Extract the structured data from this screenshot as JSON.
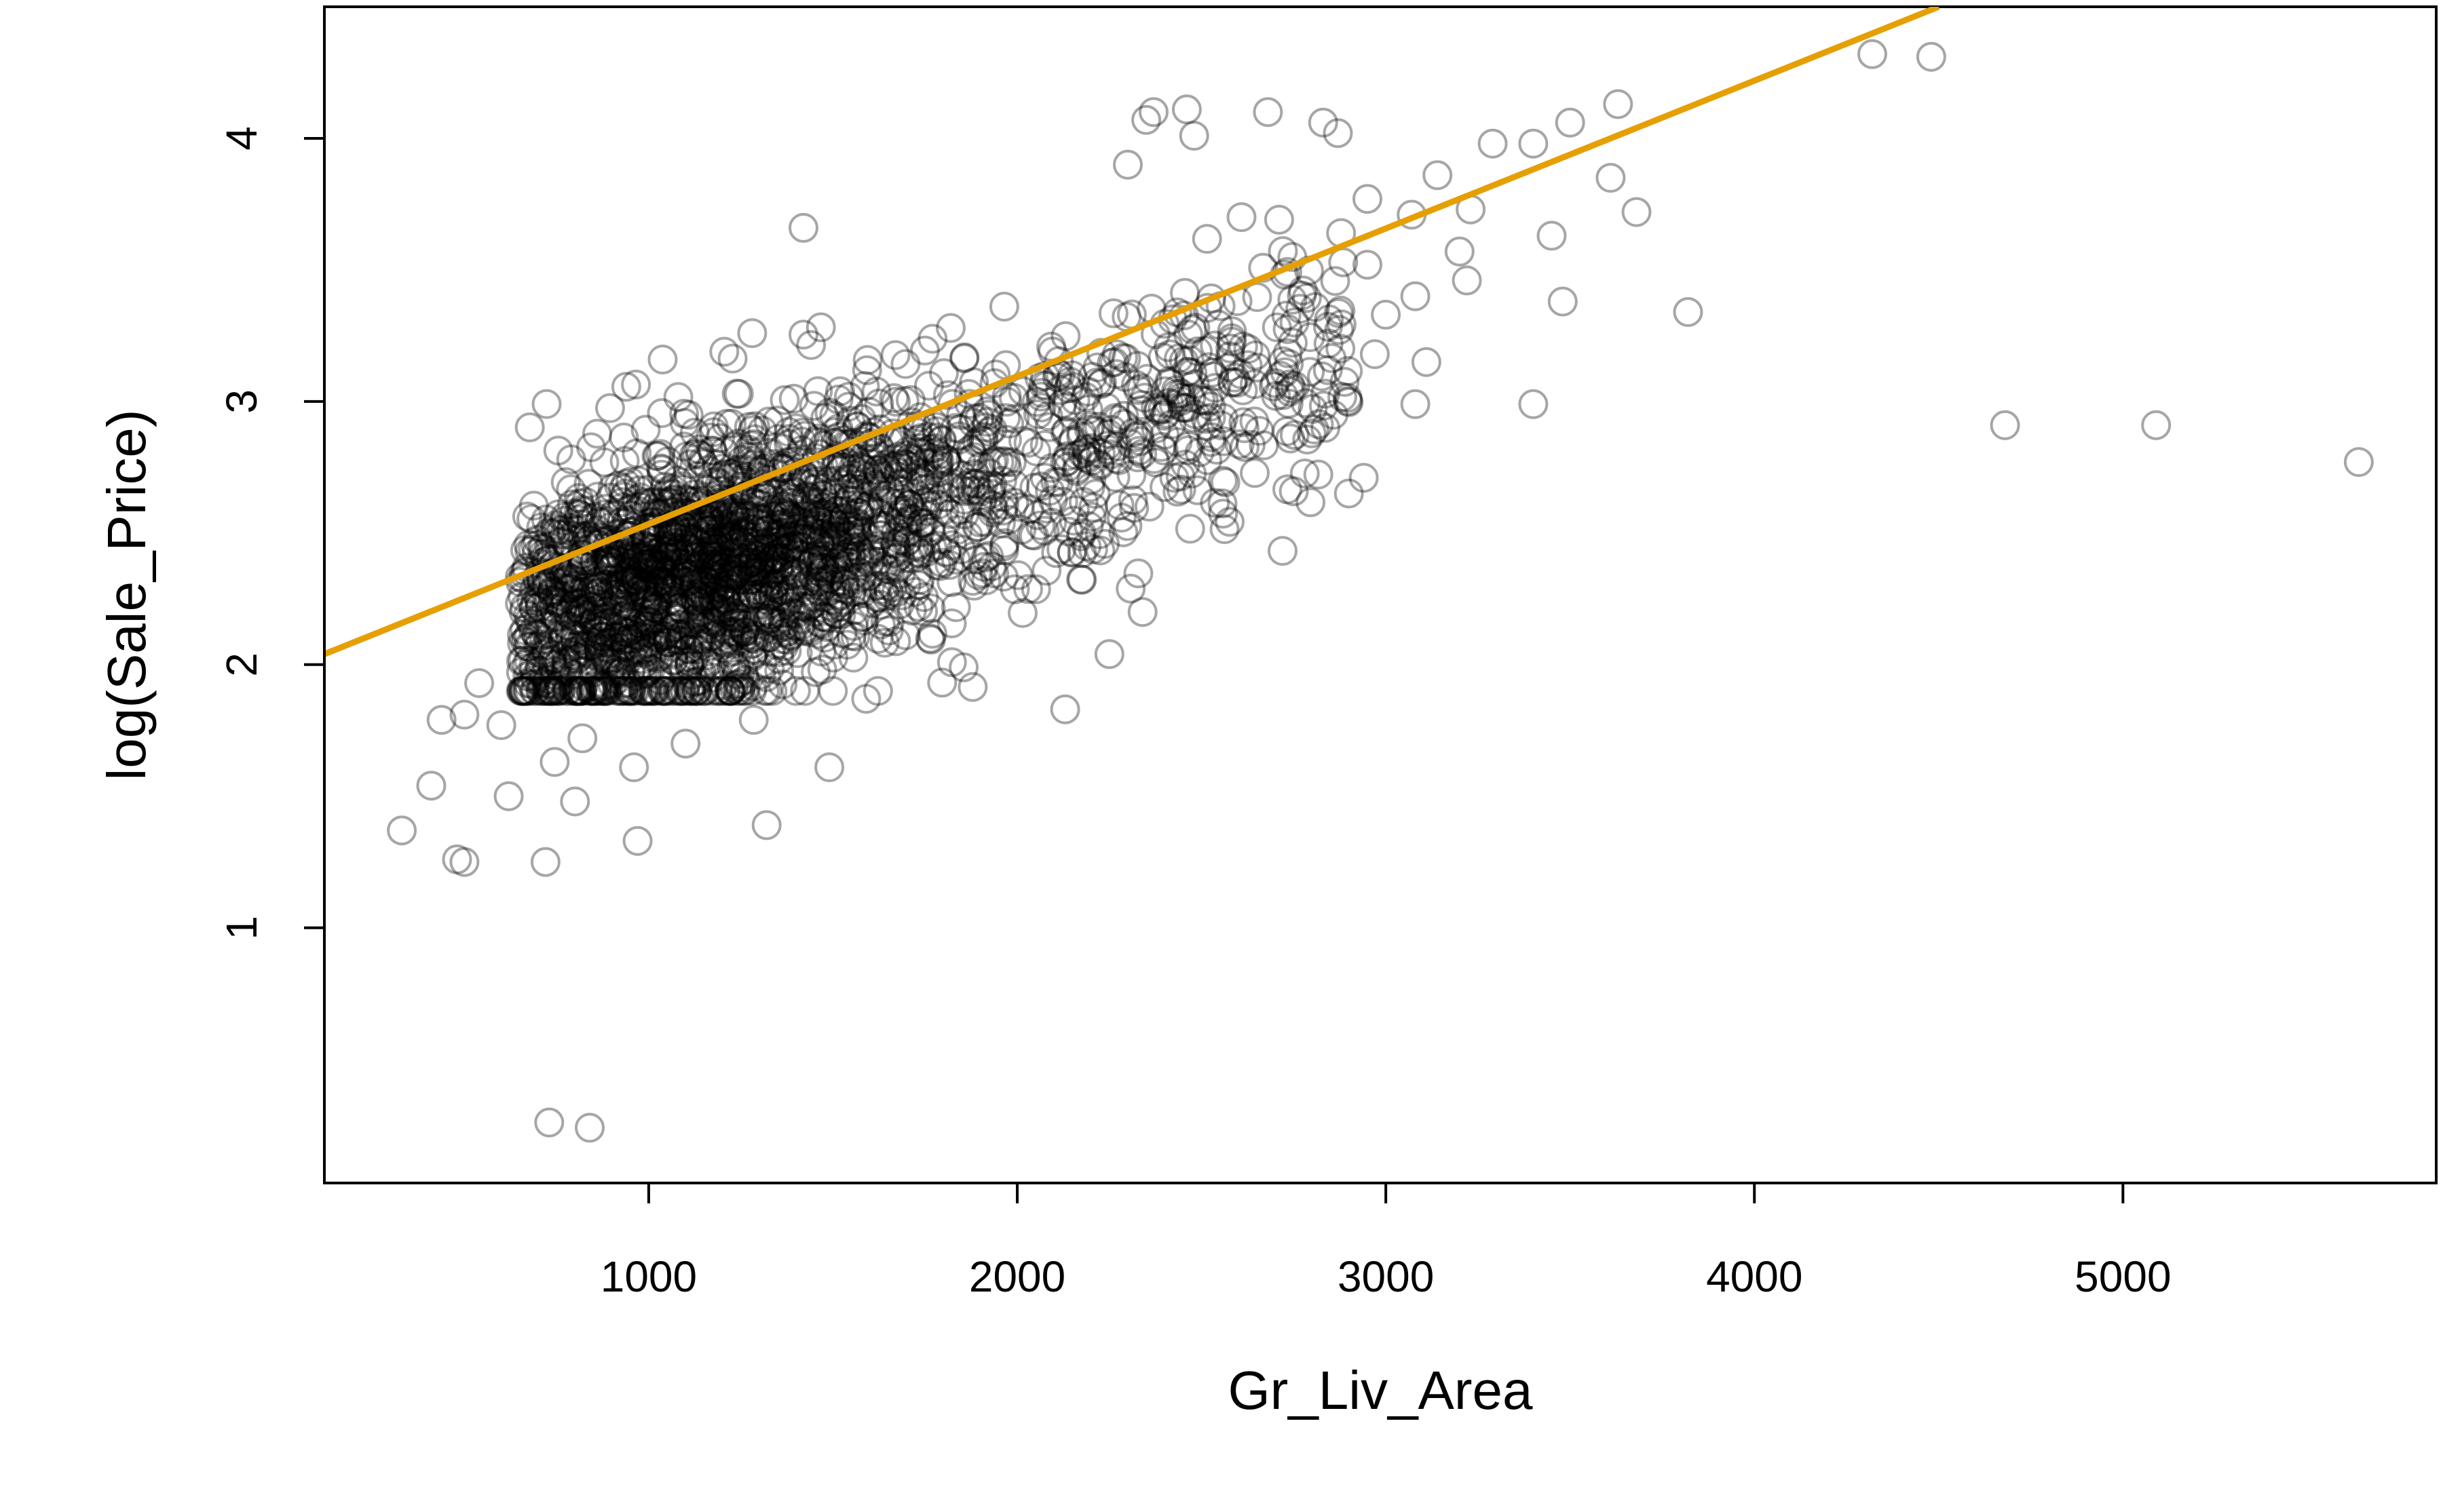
{
  "chart_data": {
    "type": "scatter",
    "title": "",
    "xlabel": "Gr_Liv_Area",
    "ylabel": "log(Sale_Price)",
    "xlim": [
      120,
      5850
    ],
    "ylim": [
      0.03,
      4.5
    ],
    "x_ticks": [
      1000,
      2000,
      3000,
      4000,
      5000
    ],
    "y_ticks": [
      1,
      2,
      3,
      4
    ],
    "grid": false,
    "legend": "none",
    "marker": "open-circle",
    "point_color": "#000000",
    "point_opacity": 0.35,
    "line_color": "#E69F00",
    "regression_line": {
      "x": [
        120,
        4500
      ],
      "y": [
        2.04,
        4.5
      ]
    },
    "outlier_points": [
      [
        330,
        1.37
      ],
      [
        410,
        1.54
      ],
      [
        438,
        1.79
      ],
      [
        480,
        1.26
      ],
      [
        500,
        1.25
      ],
      [
        500,
        1.81
      ],
      [
        540,
        1.93
      ],
      [
        600,
        1.77
      ],
      [
        620,
        1.5
      ],
      [
        720,
        1.25
      ],
      [
        730,
        0.26
      ],
      [
        745,
        1.63
      ],
      [
        800,
        1.48
      ],
      [
        820,
        1.72
      ],
      [
        840,
        0.24
      ],
      [
        960,
        1.61
      ],
      [
        970,
        1.33
      ],
      [
        1100,
        1.7
      ],
      [
        1285,
        1.79
      ],
      [
        1320,
        1.39
      ],
      [
        1490,
        1.61
      ],
      [
        1590,
        1.87
      ],
      [
        1420,
        3.66
      ],
      [
        2130,
        1.83
      ],
      [
        2250,
        2.04
      ],
      [
        2340,
        2.2
      ],
      [
        2300,
        3.9
      ],
      [
        2350,
        4.07
      ],
      [
        2370,
        4.1
      ],
      [
        2460,
        4.11
      ],
      [
        2480,
        4.01
      ],
      [
        2680,
        4.1
      ],
      [
        2830,
        4.06
      ],
      [
        2870,
        4.02
      ],
      [
        2940,
        2.71
      ],
      [
        2950,
        3.77
      ],
      [
        2950,
        3.52
      ],
      [
        2970,
        3.18
      ],
      [
        3000,
        3.33
      ],
      [
        3070,
        3.71
      ],
      [
        3080,
        3.4
      ],
      [
        3080,
        2.99
      ],
      [
        3110,
        3.15
      ],
      [
        3140,
        3.86
      ],
      [
        3200,
        3.57
      ],
      [
        3220,
        3.46
      ],
      [
        3230,
        3.73
      ],
      [
        3290,
        3.98
      ],
      [
        3400,
        2.99
      ],
      [
        3400,
        3.98
      ],
      [
        3450,
        3.63
      ],
      [
        3480,
        3.38
      ],
      [
        3500,
        4.06
      ],
      [
        3610,
        3.85
      ],
      [
        3630,
        4.13
      ],
      [
        3680,
        3.72
      ],
      [
        3820,
        3.34
      ],
      [
        4320,
        4.32
      ],
      [
        4480,
        4.31
      ],
      [
        4680,
        2.91
      ],
      [
        5090,
        2.91
      ],
      [
        5640,
        2.77
      ]
    ]
  }
}
